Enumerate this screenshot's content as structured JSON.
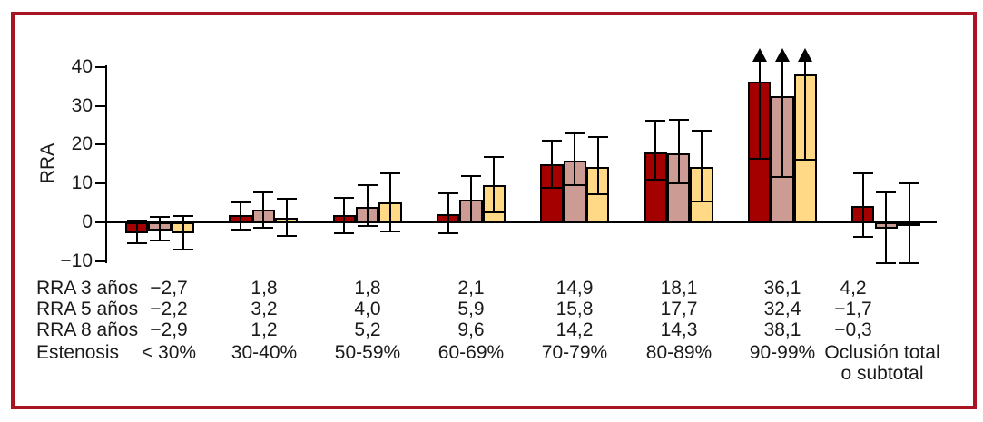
{
  "frame": {
    "border_color": "#a81420",
    "background": "#ffffff"
  },
  "chart_data": {
    "type": "bar",
    "title": "",
    "xlabel": "Estenosis",
    "ylabel": "RRA",
    "ylim": [
      -10,
      40
    ],
    "yticks": [
      40,
      30,
      20,
      10,
      0,
      -10
    ],
    "ytick_labels": [
      "40",
      "30",
      "20",
      "10",
      "0",
      "−10"
    ],
    "grid": false,
    "legend_position": "none",
    "error_bars": true,
    "note": "Error bars in the 90-99% group extend beyond the top axis and end in upward arrows",
    "categories": [
      "< 30%",
      "30-40%",
      "50-59%",
      "60-69%",
      "70-79%",
      "80-89%",
      "90-99%",
      "Oclusión total o subtotal"
    ],
    "series": [
      {
        "name": "RRA 3 años",
        "color": "#a40000",
        "values": [
          -2.7,
          1.8,
          1.8,
          2.1,
          14.9,
          18.1,
          36.1,
          4.2
        ],
        "ci_low": [
          -5.3,
          -1.9,
          -2.7,
          -2.9,
          8.8,
          10.9,
          16.4,
          -3.7
        ],
        "ci_high": [
          0.4,
          5.2,
          6.4,
          7.4,
          21.1,
          26.1,
          44.9,
          12.7
        ],
        "ci_arrow": [
          false,
          false,
          false,
          false,
          false,
          false,
          true,
          false
        ]
      },
      {
        "name": "RRA 5 años",
        "color": "#cc9b93",
        "values": [
          -2.2,
          3.2,
          4.0,
          5.9,
          15.8,
          17.7,
          32.4,
          -1.7
        ],
        "ci_low": [
          -4.6,
          -1.3,
          -1.0,
          0.2,
          9.6,
          10.0,
          11.7,
          -10.6
        ],
        "ci_high": [
          1.3,
          7.6,
          9.6,
          11.9,
          22.8,
          26.4,
          44.9,
          7.6
        ],
        "ci_arrow": [
          false,
          false,
          false,
          false,
          false,
          false,
          true,
          false
        ]
      },
      {
        "name": "RRA 8 años",
        "color": "#ffd985",
        "values": [
          -2.9,
          1.2,
          5.2,
          9.6,
          14.2,
          14.3,
          38.1,
          -0.3
        ],
        "ci_low": [
          -7.0,
          -3.5,
          -2.3,
          2.5,
          7.2,
          5.3,
          16.2,
          -10.6
        ],
        "ci_high": [
          1.6,
          6.1,
          12.6,
          16.9,
          22.0,
          23.6,
          44.9,
          10.1
        ],
        "ci_arrow": [
          false,
          false,
          false,
          false,
          false,
          false,
          true,
          false
        ]
      }
    ]
  },
  "table": {
    "rows": [
      {
        "label": "RRA 3 años",
        "values": [
          "−2,7",
          "1,8",
          "1,8",
          "2,1",
          "14,9",
          "18,1",
          "36,1",
          "4,2"
        ]
      },
      {
        "label": "RRA 5 años",
        "values": [
          "−2,2",
          "3,2",
          "4,0",
          "5,9",
          "15,8",
          "17,7",
          "32,4",
          "−1,7"
        ]
      },
      {
        "label": "RRA 8 años",
        "values": [
          "−2,9",
          "1,2",
          "5,2",
          "9,6",
          "14,2",
          "14,3",
          "38,1",
          "−0,3"
        ]
      },
      {
        "label": "Estenosis",
        "values": [
          "< 30%",
          "30-40%",
          "50-59%",
          "60-69%",
          "70-79%",
          "80-89%",
          "90-99%",
          "Oclusión total\no subtotal"
        ]
      }
    ]
  }
}
